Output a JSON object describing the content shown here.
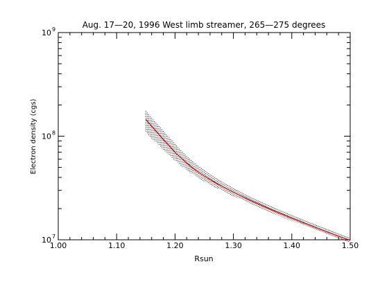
{
  "chart_data": {
    "type": "scatter",
    "title": "Aug. 17—20, 1996 West limb streamer, 265—275 degrees",
    "xlabel": "Rsun",
    "ylabel": "Electron density (cgs)",
    "xlim": [
      1.0,
      1.5
    ],
    "ylim": [
      10000000,
      1000000000
    ],
    "yscale": "log",
    "grid": false,
    "legend": "none",
    "x_ticks": [
      {
        "value": 1.0,
        "label": "1.00"
      },
      {
        "value": 1.1,
        "label": "1.10"
      },
      {
        "value": 1.2,
        "label": "1.20"
      },
      {
        "value": 1.3,
        "label": "1.30"
      },
      {
        "value": 1.4,
        "label": "1.40"
      },
      {
        "value": 1.5,
        "label": "1.50"
      }
    ],
    "y_ticks": [
      {
        "value": 10000000,
        "base": "10",
        "exp": "7"
      },
      {
        "value": 100000000,
        "base": "10",
        "exp": "8"
      },
      {
        "value": 1000000000,
        "base": "10",
        "exp": "9"
      }
    ],
    "series": [
      {
        "color": "#000000",
        "style": "scatter-band",
        "x": [
          1.15,
          1.16,
          1.17,
          1.18,
          1.19,
          1.2,
          1.21,
          1.22,
          1.23,
          1.24,
          1.25,
          1.26,
          1.27,
          1.28,
          1.29,
          1.3,
          1.31,
          1.32,
          1.33,
          1.34,
          1.35,
          1.36,
          1.37,
          1.38,
          1.39,
          1.4,
          1.41,
          1.42,
          1.43,
          1.44,
          1.45,
          1.46,
          1.47,
          1.48,
          1.49,
          1.5
        ],
        "y_low": [
          110000000,
          95000000,
          84000000,
          74000000,
          65000000,
          58000000,
          52000000,
          47000000,
          43000000,
          39500000,
          36500000,
          34000000,
          31800000,
          29800000,
          28000000,
          26400000,
          24900000,
          23500000,
          22200000,
          21000000,
          19900000,
          18800000,
          17800000,
          16900000,
          16000000,
          15200000,
          14450000,
          13750000,
          13080000,
          12450000,
          11860000,
          11300000,
          10780000,
          10280000,
          9820000,
          9380000
        ],
        "y_high": [
          175000000,
          150000000,
          130000000,
          112000000,
          97000000,
          84000000,
          73000000,
          64000000,
          57000000,
          51500000,
          46800000,
          42800000,
          39300000,
          36300000,
          33700000,
          31400000,
          29300000,
          27400000,
          25700000,
          24200000,
          22800000,
          21500000,
          20300000,
          19200000,
          18200000,
          17250000,
          16350000,
          15520000,
          14730000,
          13990000,
          13300000,
          12640000,
          12020000,
          11440000,
          10890000,
          10370000
        ]
      },
      {
        "color": "#e00000",
        "style": "line",
        "x": [
          1.15,
          1.16,
          1.17,
          1.18,
          1.19,
          1.2,
          1.21,
          1.22,
          1.23,
          1.24,
          1.25,
          1.26,
          1.27,
          1.28,
          1.29,
          1.3,
          1.31,
          1.32,
          1.33,
          1.34,
          1.35,
          1.36,
          1.37,
          1.38,
          1.39,
          1.4,
          1.41,
          1.42,
          1.43,
          1.44,
          1.45,
          1.46,
          1.47,
          1.48,
          1.49,
          1.5
        ],
        "y": [
          145000000,
          125000000,
          108000000,
          93000000,
          81000000,
          70000000,
          62000000,
          55000000,
          49500000,
          45000000,
          41300000,
          38200000,
          35400000,
          33000000,
          30800000,
          28800000,
          27000000,
          25400000,
          23900000,
          22600000,
          21300000,
          20100000,
          19000000,
          18000000,
          17100000,
          16200000,
          15400000,
          14600000,
          13900000,
          13200000,
          12550000,
          11950000,
          11380000,
          10840000,
          10340000,
          9870000
        ]
      }
    ]
  }
}
